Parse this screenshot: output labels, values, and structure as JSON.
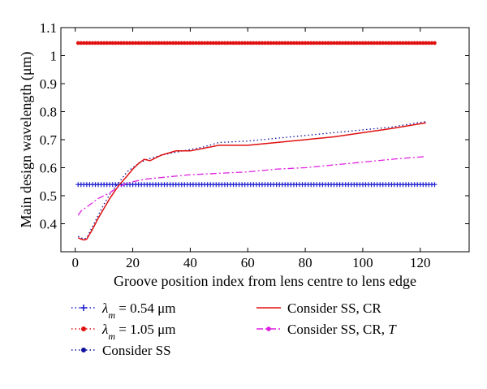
{
  "chart_data": {
    "type": "line",
    "xlabel": "Groove position index from lens centre to lens edge",
    "ylabel": "Main design wavelength (μm)",
    "xlim": [
      -5,
      137
    ],
    "ylim": [
      0.3,
      1.1
    ],
    "xticks": [
      0,
      20,
      40,
      60,
      80,
      100,
      120
    ],
    "yticks": [
      0.4,
      0.5,
      0.6,
      0.7,
      0.8,
      0.9,
      1,
      1.1
    ],
    "grid": false,
    "legend_position": "below",
    "series": [
      {
        "name": "λm = 0.54 μm",
        "legend_parts": [
          "λ",
          "m",
          " = 0.54 μm"
        ],
        "color": "#1f1fd0",
        "line_style": "dotted",
        "marker": "plus",
        "x": [
          1,
          125
        ],
        "y": [
          0.54,
          0.54
        ]
      },
      {
        "name": "λm = 1.05 μm",
        "legend_parts": [
          "λ",
          "m",
          " = 1.05 μm"
        ],
        "color": "#e01010",
        "line_style": "dotted",
        "marker": "dot",
        "x": [
          1,
          125
        ],
        "y": [
          1.045,
          1.045
        ]
      },
      {
        "name": "Consider SS",
        "legend_parts": [
          "Consider SS"
        ],
        "color": "#1010a0",
        "line_style": "dotted",
        "marker": "none",
        "x": [
          1,
          2,
          3,
          4,
          6,
          8,
          10,
          12,
          15,
          18,
          20,
          22,
          24,
          25,
          30,
          35,
          40,
          45,
          50,
          60,
          70,
          80,
          90,
          100,
          110,
          122
        ],
        "y": [
          0.355,
          0.35,
          0.345,
          0.35,
          0.39,
          0.43,
          0.47,
          0.505,
          0.545,
          0.585,
          0.6,
          0.615,
          0.625,
          0.63,
          0.645,
          0.655,
          0.665,
          0.675,
          0.69,
          0.695,
          0.705,
          0.715,
          0.725,
          0.735,
          0.745,
          0.765
        ]
      },
      {
        "name": "Consider SS, CR",
        "legend_parts": [
          "Consider SS, CR"
        ],
        "color": "#e01010",
        "line_style": "solid",
        "marker": "none",
        "x": [
          1,
          2,
          3,
          4,
          6,
          8,
          10,
          12,
          15,
          18,
          20,
          22,
          24,
          26,
          30,
          35,
          40,
          45,
          50,
          60,
          70,
          80,
          90,
          100,
          110,
          122
        ],
        "y": [
          0.35,
          0.345,
          0.342,
          0.345,
          0.38,
          0.42,
          0.455,
          0.49,
          0.535,
          0.57,
          0.595,
          0.615,
          0.63,
          0.625,
          0.645,
          0.66,
          0.66,
          0.67,
          0.68,
          0.68,
          0.69,
          0.7,
          0.71,
          0.725,
          0.74,
          0.76
        ]
      },
      {
        "name": "Consider SS, CR, T",
        "legend_parts": [
          "Consider SS, CR, ",
          "T"
        ],
        "color": "#e020e0",
        "line_style": "dashdot",
        "marker": "none",
        "x": [
          1,
          2,
          4,
          6,
          8,
          10,
          12,
          14,
          16,
          18,
          20,
          25,
          30,
          40,
          50,
          60,
          70,
          80,
          90,
          100,
          110,
          122
        ],
        "y": [
          0.43,
          0.445,
          0.46,
          0.475,
          0.49,
          0.5,
          0.51,
          0.525,
          0.535,
          0.545,
          0.55,
          0.56,
          0.565,
          0.575,
          0.58,
          0.585,
          0.595,
          0.6,
          0.61,
          0.62,
          0.63,
          0.64
        ]
      }
    ]
  }
}
